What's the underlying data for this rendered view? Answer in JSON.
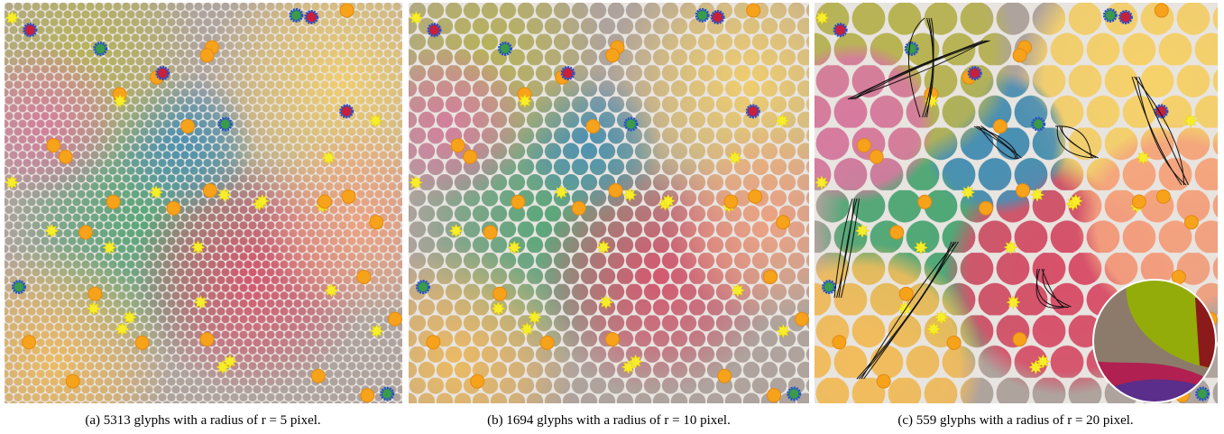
{
  "figure": {
    "captions": [
      "(a) 5313 glyphs with a radius of r = 5 pixel.",
      "(b) 1694 glyphs with a radius of r = 10 pixel.",
      "(c) 559 glyphs with a radius of r = 20 pixel."
    ]
  }
}
